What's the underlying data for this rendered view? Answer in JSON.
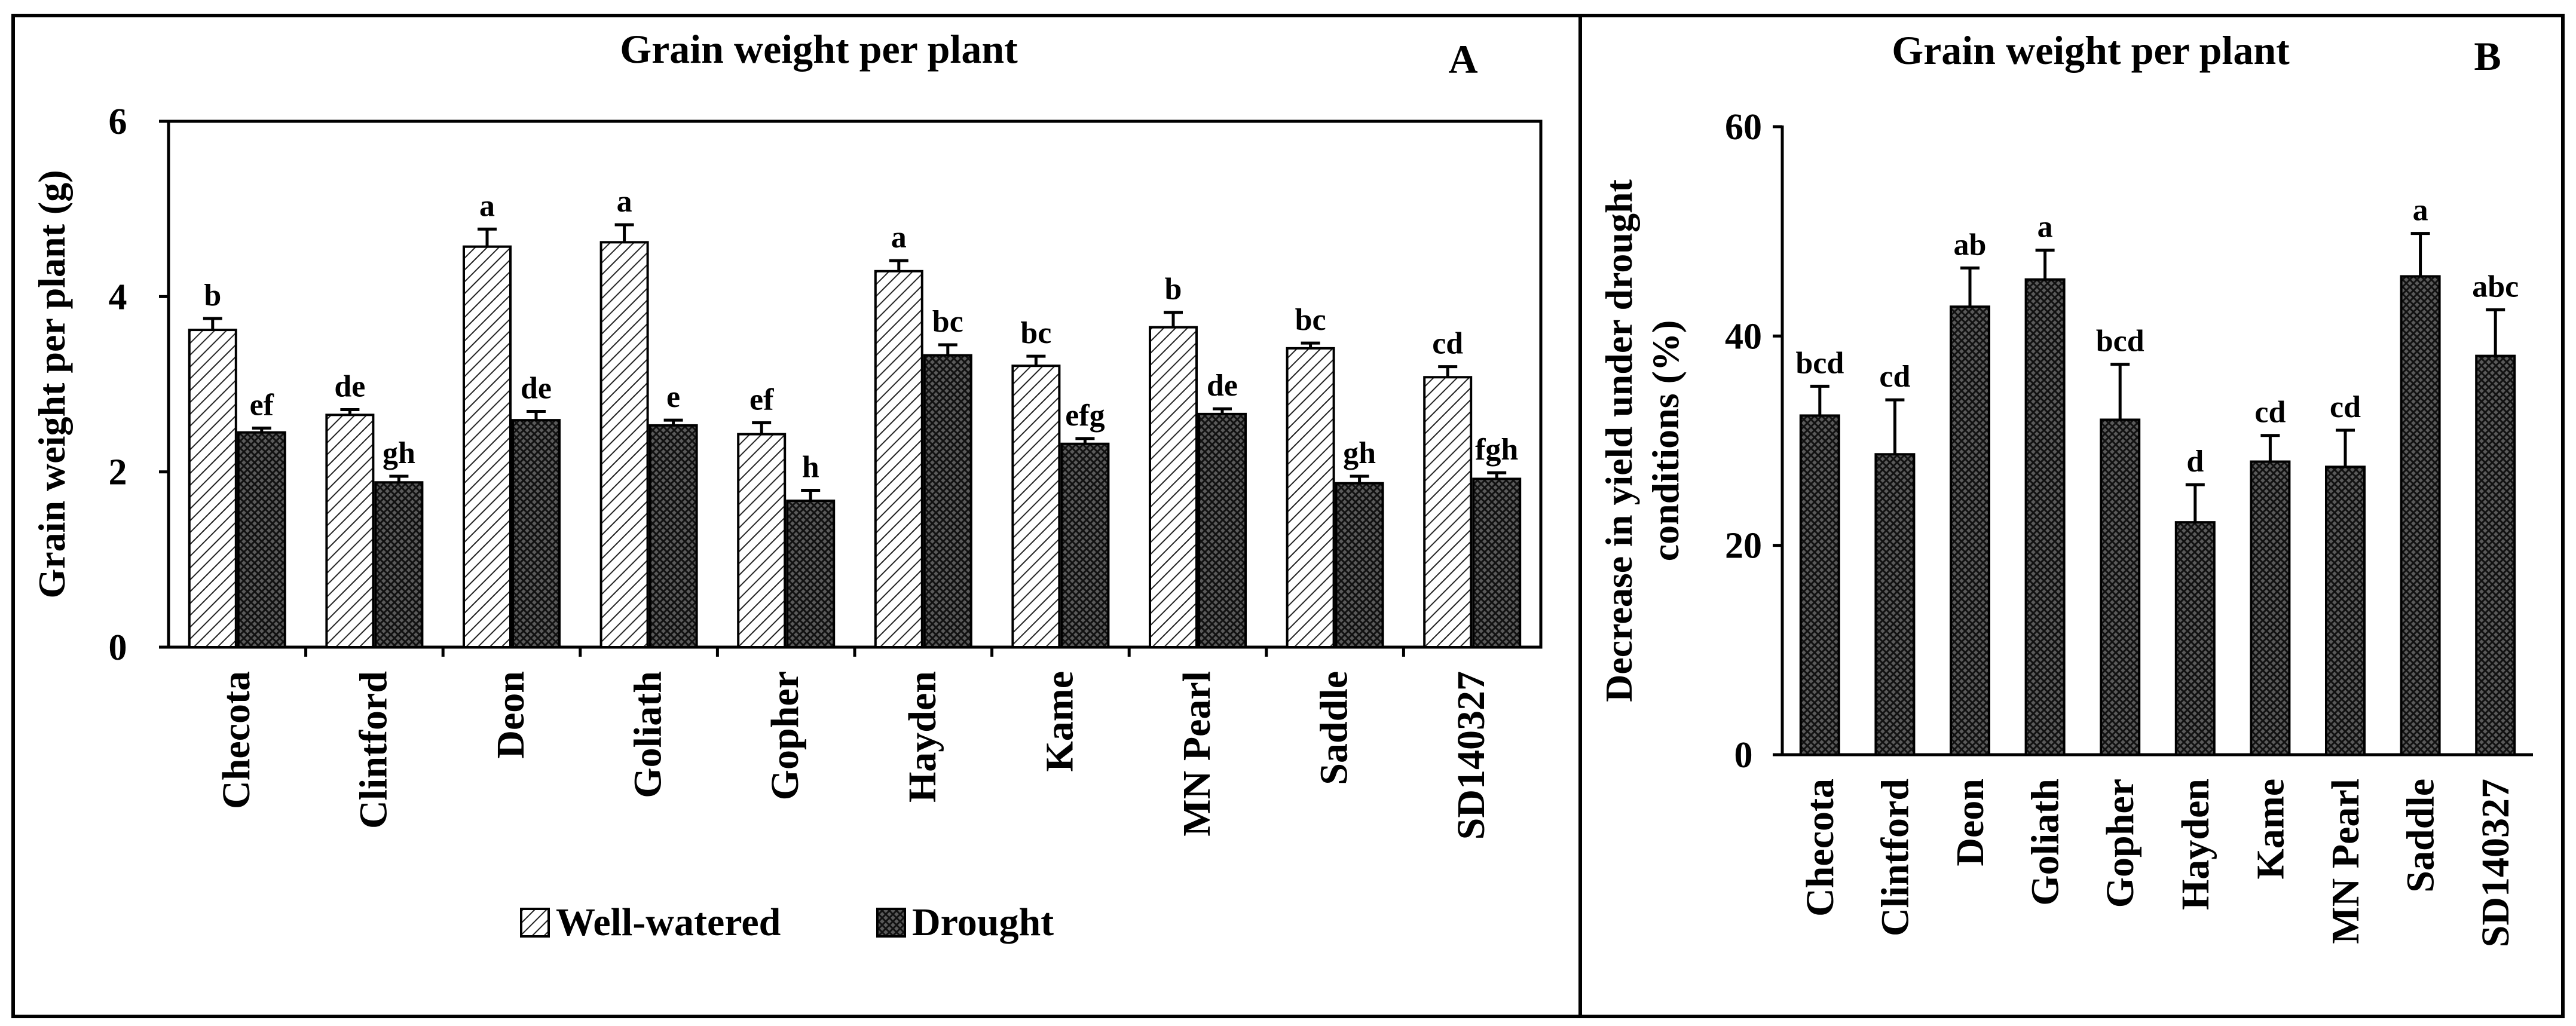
{
  "chart_data": [
    {
      "type": "bar",
      "panel": "A",
      "title": "Grain weight per plant",
      "ylabel": "Grain weight per plant (g)",
      "xlabel": "",
      "ylim": [
        0,
        6
      ],
      "yticks": [
        "0",
        "2",
        "4",
        "6"
      ],
      "grid": false,
      "legend_position": "bottom",
      "categories": [
        "Checota",
        "Clintford",
        "Deon",
        "Goliath",
        "Gopher",
        "Hayden",
        "Kame",
        "MN Pearl",
        "Saddle",
        "SD140327"
      ],
      "series": [
        {
          "name": "Well-watered",
          "pattern": "diagonal-hatch",
          "values": [
            3.62,
            2.65,
            4.57,
            4.62,
            2.43,
            4.29,
            3.21,
            3.65,
            3.41,
            3.08
          ],
          "errors": [
            0.13,
            0.06,
            0.2,
            0.2,
            0.13,
            0.12,
            0.11,
            0.17,
            0.06,
            0.12
          ],
          "labels": [
            "b",
            "de",
            "a",
            "a",
            "ef",
            "a",
            "bc",
            "b",
            "bc",
            "cd"
          ]
        },
        {
          "name": "Drought",
          "pattern": "crosshatch",
          "values": [
            2.45,
            1.88,
            2.59,
            2.53,
            1.67,
            3.33,
            2.32,
            2.66,
            1.87,
            1.92
          ],
          "errors": [
            0.05,
            0.07,
            0.1,
            0.06,
            0.12,
            0.12,
            0.06,
            0.06,
            0.08,
            0.07
          ],
          "labels": [
            "ef",
            "gh",
            "de",
            "e",
            "h",
            "bc",
            "efg",
            "de",
            "gh",
            "fgh"
          ]
        }
      ],
      "legend": [
        "Well-watered",
        "Drought"
      ]
    },
    {
      "type": "bar",
      "panel": "B",
      "title": "Grain weight per plant",
      "ylabel_line1": "Decrease in yield under drought",
      "ylabel_line2": "conditions (%)",
      "xlabel": "",
      "ylim": [
        0,
        60
      ],
      "yticks": [
        "0",
        "20",
        "40",
        "60"
      ],
      "grid": false,
      "categories": [
        "Checota",
        "Clintford",
        "Deon",
        "Goliath",
        "Gopher",
        "Hayden",
        "Kame",
        "MN Pearl",
        "Saddle",
        "SD140327"
      ],
      "series": [
        {
          "pattern": "crosshatch",
          "values": [
            32.4,
            28.7,
            42.8,
            45.4,
            32.0,
            22.2,
            28.0,
            27.5,
            45.7,
            38.1
          ],
          "errors": [
            2.8,
            5.2,
            3.7,
            2.8,
            5.3,
            3.6,
            2.5,
            3.5,
            4.1,
            4.4
          ],
          "labels": [
            "bcd",
            "cd",
            "ab",
            "a",
            "bcd",
            "d",
            "cd",
            "cd",
            "a",
            "abc"
          ]
        }
      ]
    }
  ]
}
